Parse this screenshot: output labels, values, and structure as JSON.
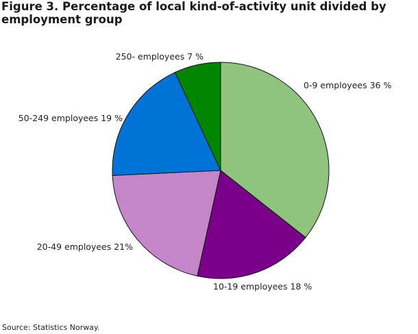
{
  "title": "Figure 3. Percentage of local kind-of-activity unit divided by employment group",
  "source": "Source: Statistics Norway.",
  "chart_data": {
    "type": "pie",
    "title": "Figure 3. Percentage of local kind-of-activity unit divided by employment group",
    "start": "12 o'clock",
    "direction": "clockwise",
    "slices": [
      {
        "name": "0-9 employees",
        "value": 36,
        "label": "0-9 employees 36 %",
        "color": "#90c47e"
      },
      {
        "name": "10-19 employees",
        "value": 18,
        "label": "10-19 employees 18 %",
        "color": "#7b0089"
      },
      {
        "name": "20-49 employees",
        "value": 21,
        "label": "20-49 employees 21%",
        "color": "#c485c9"
      },
      {
        "name": "50-249 employees",
        "value": 19,
        "label": "50-249 employees 19 %",
        "color": "#0073d6"
      },
      {
        "name": "250- employees",
        "value": 7,
        "label": "250- employees 7 %",
        "color": "#008500"
      }
    ]
  }
}
